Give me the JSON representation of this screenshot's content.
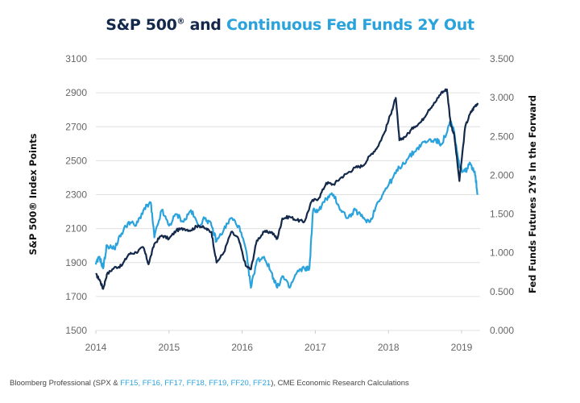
{
  "title": {
    "part_dark": "S&P 500",
    "registered_mark": "®",
    "part_dark_2": " and ",
    "part_light": "Continuous Fed Funds 2Y Out"
  },
  "source": {
    "prefix": "Bloomberg Professional (SPX & ",
    "highlighted": "FF15, FF16, FF17, FF18, FF19, FF20, FF21",
    "suffix": "), CME Economic Research Calculations"
  },
  "colors": {
    "sp500": "#13284a",
    "fed_funds": "#2aa3dc",
    "grid": "#e0e0e0"
  },
  "chart_data": {
    "type": "line",
    "title": "S&P 500® and Continuous Fed Funds 2Y Out",
    "xlabel": "",
    "ylabel_left": "S&P 500® Index Points",
    "ylabel_right": "Fed Funds Futures 2Ys In the Forward",
    "xlim": [
      2014,
      2019.25
    ],
    "ylim_left": [
      1500,
      3100
    ],
    "ylim_right": [
      0,
      3.5
    ],
    "x_ticks": [
      "2014",
      "2015",
      "2016",
      "2017",
      "2018",
      "2019"
    ],
    "x_tick_values": [
      2014,
      2015,
      2016,
      2017,
      2018,
      2019
    ],
    "y_ticks_left": [
      "1500",
      "1700",
      "1900",
      "2100",
      "2300",
      "2500",
      "2700",
      "2900",
      "3100"
    ],
    "y_tick_values_left": [
      1500,
      1700,
      1900,
      2100,
      2300,
      2500,
      2700,
      2900,
      3100
    ],
    "y_ticks_right": [
      "0.000",
      "0.500",
      "1.000",
      "1.500",
      "2.000",
      "2.500",
      "3.000",
      "3.500"
    ],
    "y_tick_values_right": [
      0,
      0.5,
      1,
      1.5,
      2,
      2.5,
      3,
      3.5
    ],
    "grid": "horizontal",
    "legend": "none (series identified by title color)",
    "series": [
      {
        "name": "S&P 500",
        "axis": "left",
        "color": "#13284a",
        "x": [
          2014.0,
          2014.05,
          2014.1,
          2014.15,
          2014.25,
          2014.35,
          2014.45,
          2014.55,
          2014.65,
          2014.72,
          2014.8,
          2014.9,
          2015.0,
          2015.1,
          2015.2,
          2015.3,
          2015.4,
          2015.5,
          2015.58,
          2015.65,
          2015.75,
          2015.85,
          2015.95,
          2016.05,
          2016.12,
          2016.2,
          2016.3,
          2016.4,
          2016.48,
          2016.55,
          2016.65,
          2016.75,
          2016.85,
          2016.95,
          2017.05,
          2017.15,
          2017.25,
          2017.35,
          2017.45,
          2017.55,
          2017.65,
          2017.75,
          2017.85,
          2017.95,
          2018.05,
          2018.1,
          2018.15,
          2018.25,
          2018.35,
          2018.45,
          2018.55,
          2018.65,
          2018.72,
          2018.8,
          2018.85,
          2018.9,
          2018.97,
          2019.05,
          2019.12,
          2019.18,
          2019.22
        ],
        "values": [
          1830,
          1800,
          1745,
          1830,
          1870,
          1880,
          1950,
          1960,
          1990,
          1890,
          2010,
          2060,
          2040,
          2090,
          2100,
          2090,
          2120,
          2100,
          2080,
          1900,
          1960,
          2080,
          2040,
          1880,
          1860,
          2030,
          2080,
          2080,
          2040,
          2160,
          2170,
          2150,
          2140,
          2260,
          2280,
          2370,
          2360,
          2400,
          2430,
          2460,
          2470,
          2530,
          2580,
          2670,
          2800,
          2870,
          2620,
          2650,
          2700,
          2730,
          2800,
          2850,
          2900,
          2920,
          2720,
          2650,
          2380,
          2700,
          2780,
          2820,
          2840
        ]
      },
      {
        "name": "Continuous Fed Funds 2Y Out",
        "axis": "right",
        "color": "#2aa3dc",
        "x": [
          2014.0,
          2014.05,
          2014.1,
          2014.15,
          2014.25,
          2014.35,
          2014.45,
          2014.55,
          2014.65,
          2014.75,
          2014.8,
          2014.9,
          2015.0,
          2015.1,
          2015.2,
          2015.3,
          2015.4,
          2015.5,
          2015.58,
          2015.65,
          2015.75,
          2015.85,
          2015.95,
          2016.05,
          2016.12,
          2016.2,
          2016.3,
          2016.4,
          2016.48,
          2016.55,
          2016.65,
          2016.75,
          2016.85,
          2016.92,
          2016.97,
          2017.05,
          2017.15,
          2017.25,
          2017.35,
          2017.45,
          2017.55,
          2017.65,
          2017.75,
          2017.85,
          2017.95,
          2018.05,
          2018.15,
          2018.25,
          2018.35,
          2018.45,
          2018.55,
          2018.65,
          2018.72,
          2018.8,
          2018.85,
          2018.9,
          2018.97,
          2019.05,
          2019.12,
          2019.18,
          2019.22
        ],
        "values": [
          0.85,
          0.95,
          0.8,
          1.1,
          1.05,
          1.25,
          1.4,
          1.35,
          1.55,
          1.65,
          1.2,
          1.55,
          1.35,
          1.5,
          1.4,
          1.55,
          1.35,
          1.45,
          1.35,
          1.15,
          1.3,
          1.45,
          1.35,
          1.05,
          0.55,
          0.9,
          0.95,
          0.75,
          0.55,
          0.7,
          0.55,
          0.75,
          0.8,
          0.8,
          1.55,
          1.55,
          1.7,
          1.75,
          1.55,
          1.45,
          1.55,
          1.45,
          1.4,
          1.65,
          1.8,
          1.95,
          2.1,
          2.2,
          2.3,
          2.4,
          2.45,
          2.45,
          2.4,
          2.55,
          2.7,
          2.55,
          2.1,
          2.05,
          2.15,
          2.05,
          1.75
        ]
      }
    ]
  }
}
